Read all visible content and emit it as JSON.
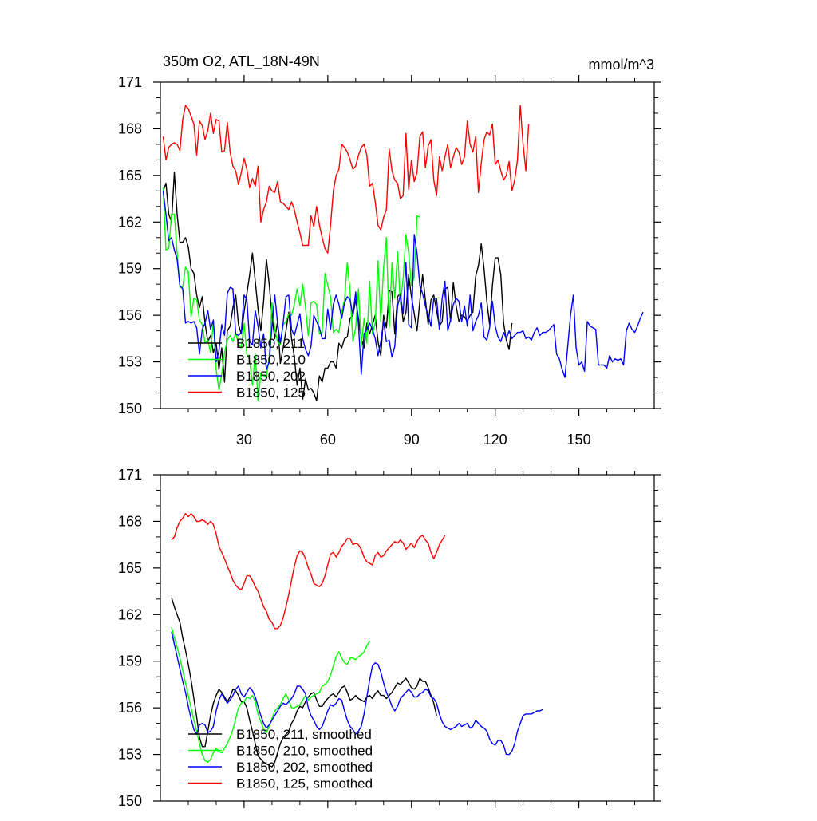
{
  "chart_data": [
    {
      "type": "line",
      "title": "350m O2, ATL_18N-49N",
      "units": "mmol/m^3",
      "xlim": [
        0,
        177
      ],
      "ylim": [
        150,
        171
      ],
      "yticks": [
        150,
        153,
        156,
        159,
        162,
        165,
        168,
        171
      ],
      "xticks": [
        30,
        60,
        90,
        120,
        150
      ],
      "legend_position": "bottom-left",
      "series": [
        {
          "name": "B1850, 211",
          "color": "#000000",
          "x0": 1,
          "values": [
            164.0,
            164.5,
            162.5,
            162.0,
            165.2,
            162.5,
            160.7,
            160.7,
            161.0,
            160.4,
            159.0,
            158.7,
            157.3,
            156.5,
            157.2,
            155.5,
            154.3,
            154.7,
            153.6,
            154.2,
            152.5,
            153.9,
            151.7,
            155.0,
            155.3,
            156.5,
            157.3,
            155.4,
            154.8,
            156.2,
            157.4,
            158.6,
            160.0,
            158.2,
            156.4,
            155.0,
            156.9,
            159.6,
            158.0,
            156.0,
            154.5,
            155.6,
            152.9,
            153.9,
            155.0,
            156.2,
            154.5,
            153.3,
            151.5,
            152.6,
            150.6,
            151.9,
            151.2,
            151.3,
            151.0,
            150.5,
            152.1,
            151.7,
            152.6,
            152.6,
            153.0,
            153.0,
            152.6,
            154.2,
            153.9,
            154.5,
            154.6,
            155.8,
            156.0,
            157.0,
            155.8,
            154.5,
            153.9,
            155.5,
            154.8,
            155.4,
            156.0,
            154.3,
            153.4,
            156.0,
            155.2,
            157.6,
            157.5,
            154.8,
            157.2,
            157.4,
            155.6,
            156.2,
            158.6,
            157.2,
            156.1,
            155.0,
            156.9,
            158.6,
            157.0,
            155.4,
            157.0,
            157.3,
            156.3,
            155.3,
            155.6,
            157.7,
            157.8,
            155.6,
            158.1,
            156.6,
            155.6,
            156.0,
            155.9,
            155.6,
            156.0,
            156.2,
            158.5,
            159.2,
            160.6,
            159.0,
            156.9,
            155.4,
            157.9,
            159.7,
            159.7,
            158.6,
            155.5,
            154.4,
            153.8,
            155.5
          ]
        },
        {
          "name": "B1850, 210",
          "color": "#00ff00",
          "x0": 1,
          "values": [
            164.2,
            160.2,
            160.3,
            162.5,
            162.5,
            160.0,
            157.8,
            157.8,
            159.1,
            158.8,
            155.9,
            157.1,
            157.0,
            155.7,
            155.4,
            154.2,
            154.4,
            153.6,
            155.6,
            152.5,
            151.2,
            152.2,
            153.6,
            154.4,
            154.7,
            154.3,
            154.9,
            154.1,
            153.9,
            155.5,
            153.5,
            153.1,
            151.5,
            153.5,
            150.5,
            152.3,
            152.1,
            152.0,
            153.3,
            156.8,
            155.1,
            154.3,
            154.1,
            155.4,
            155.6,
            156.1,
            156.0,
            156.7,
            157.7,
            156.6,
            158.0,
            156.5,
            154.7,
            156.8,
            156.9,
            156.7,
            154.8,
            154.9,
            158.7,
            157.9,
            157.2,
            154.9,
            155.1,
            154.9,
            156.2,
            157.0,
            159.4,
            157.5,
            154.3,
            155.2,
            157.7,
            154.0,
            155.8,
            154.2,
            158.2,
            154.8,
            155.5,
            159.5,
            155.6,
            159.1,
            161.0,
            155.2,
            159.4,
            157.1,
            160.1,
            156.7,
            158.4,
            161.2,
            160.0,
            157.9,
            158.5,
            162.4,
            162.3
          ]
        },
        {
          "name": "B1850, 202",
          "color": "#0000ff",
          "x0": 1,
          "values": [
            164.0,
            162.5,
            160.8,
            161.0,
            160.2,
            159.6,
            157.9,
            157.7,
            155.5,
            155.6,
            155.5,
            155.6,
            155.2,
            153.5,
            155.1,
            155.5,
            156.3,
            155.1,
            155.7,
            153.0,
            153.7,
            155.4,
            154.7,
            157.4,
            157.8,
            157.7,
            154.8,
            154.7,
            154.9,
            157.3,
            157.0,
            154.3,
            154.1,
            156.3,
            155.3,
            153.9,
            154.8,
            152.5,
            153.0,
            155.3,
            157.3,
            155.5,
            154.2,
            155.5,
            157.2,
            157.3,
            155.1,
            154.7,
            155.4,
            156.1,
            154.5,
            153.8,
            153.4,
            154.0,
            156.0,
            155.6,
            155.2,
            154.5,
            154.5,
            156.4,
            155.1,
            156.7,
            157.3,
            156.7,
            155.8,
            156.8,
            157.2,
            157.0,
            156.0,
            157.5,
            155.4,
            152.2,
            154.8,
            155.1,
            155.5,
            155.1,
            154.5,
            153.4,
            154.3,
            155.6,
            154.3,
            154.4,
            153.3,
            154.0,
            156.6,
            157.3,
            156.1,
            159.4,
            155.4,
            155.2,
            161.2,
            160.0,
            157.9,
            157.4,
            156.6,
            156.0,
            155.3,
            157.1,
            157.1,
            155.1,
            157.1,
            158.2,
            155.0,
            155.7,
            156.7,
            157.1,
            156.9,
            155.6,
            156.6,
            155.3,
            157.3,
            155.0,
            155.6,
            156.0,
            156.8,
            154.6,
            154.4,
            155.2,
            156.9,
            155.3,
            154.6,
            154.3,
            154.9,
            154.5,
            155.0,
            154.5,
            154.7,
            154.9,
            154.9,
            155.0,
            154.5,
            154.6,
            154.4,
            154.9,
            155.2,
            154.7,
            154.9,
            154.9,
            155.0,
            155.2,
            155.4,
            153.5,
            153.2,
            152.5,
            152.0,
            154.0,
            156.0,
            157.3,
            153.9,
            152.8,
            153.0,
            152.4,
            155.6,
            155.3,
            155.2,
            155.1,
            152.8,
            152.8,
            152.8,
            152.6,
            153.4,
            153.0,
            153.2,
            153.1,
            153.2,
            152.8,
            155.0,
            155.5,
            155.1,
            154.9,
            155.3,
            155.8,
            156.2
          ]
        },
        {
          "name": "B1850, 125",
          "color": "#ff0000",
          "x0": 1,
          "values": [
            167.5,
            166.0,
            166.8,
            167.0,
            167.1,
            167.0,
            166.6,
            168.6,
            169.5,
            169.3,
            168.8,
            168.3,
            166.3,
            168.5,
            168.2,
            167.3,
            167.9,
            169.0,
            167.7,
            168.6,
            168.5,
            166.5,
            166.6,
            168.4,
            166.5,
            165.6,
            165.3,
            164.4,
            165.2,
            166.1,
            165.4,
            164.2,
            164.8,
            164.3,
            165.6,
            162.0,
            162.8,
            163.3,
            164.3,
            164.0,
            163.9,
            164.6,
            163.3,
            163.2,
            163.0,
            162.8,
            163.3,
            162.8,
            162.0,
            161.3,
            160.5,
            160.5,
            160.5,
            162.4,
            161.7,
            163.0,
            161.8,
            161.0,
            160.3,
            160.0,
            161.8,
            164.0,
            165.0,
            165.4,
            167.0,
            166.8,
            166.5,
            166.0,
            165.4,
            165.6,
            166.3,
            166.8,
            167.0,
            166.3,
            164.3,
            164.5,
            163.3,
            161.8,
            161.5,
            162.3,
            162.8,
            166.7,
            165.3,
            164.7,
            164.5,
            163.5,
            163.7,
            167.7,
            164.1,
            166.0,
            164.6,
            165.2,
            167.5,
            167.8,
            165.5,
            166.9,
            167.3,
            164.7,
            163.7,
            166.2,
            165.3,
            166.2,
            167.0,
            165.5,
            166.2,
            166.8,
            166.5,
            165.7,
            166.2,
            168.5,
            167.0,
            166.5,
            167.5,
            163.9,
            165.8,
            167.3,
            167.8,
            167.6,
            168.3,
            165.7,
            166.0,
            165.3,
            164.7,
            165.0,
            165.9,
            164.0,
            164.7,
            166.0,
            169.5,
            167.0,
            165.3,
            168.3
          ]
        }
      ]
    },
    {
      "type": "line",
      "xlim": [
        0,
        177
      ],
      "ylim": [
        150,
        171
      ],
      "yticks": [
        150,
        153,
        156,
        159,
        162,
        165,
        168,
        171
      ],
      "legend_position": "bottom-left",
      "series": [
        {
          "name": "B1850, 211, smoothed",
          "color": "#000000",
          "x0": 4,
          "values": [
            163.1,
            162.5,
            162.0,
            161.5,
            160.5,
            159.7,
            158.8,
            157.8,
            156.6,
            155.4,
            154.1,
            153.5,
            153.5,
            154.5,
            155.5,
            156.3,
            156.8,
            157.2,
            157.0,
            156.7,
            156.4,
            156.7,
            157.2,
            157.1,
            156.8,
            156.4,
            156.4,
            156.0,
            155.2,
            154.5,
            153.7,
            152.9,
            152.7,
            152.5,
            152.4,
            152.3,
            152.2,
            152.5,
            153.1,
            153.7,
            154.1,
            154.3,
            154.5,
            155.0,
            155.3,
            155.8,
            156.1,
            156.0,
            156.4,
            156.7,
            156.9,
            157.0,
            156.5,
            156.1,
            156.1,
            156.4,
            156.6,
            156.8,
            156.9,
            156.7,
            157.0,
            157.3,
            157.4,
            157.0,
            156.5,
            156.6,
            156.8,
            156.6,
            156.5,
            156.4,
            156.7,
            156.8,
            156.6,
            156.9,
            157.1,
            156.8,
            156.8,
            156.6,
            156.8,
            157.0,
            157.3,
            157.6,
            157.5,
            157.7,
            157.9,
            157.6,
            157.3,
            157.2,
            157.4,
            157.9,
            157.7,
            157.7,
            157.3,
            156.8,
            156.3,
            155.5
          ]
        },
        {
          "name": "B1850, 210, smoothed",
          "color": "#00ff00",
          "x0": 4,
          "values": [
            161.2,
            160.5,
            159.9,
            159.2,
            158.4,
            157.6,
            156.8,
            156.0,
            155.2,
            154.5,
            153.7,
            153.0,
            152.6,
            152.5,
            152.7,
            153.1,
            153.4,
            153.2,
            153.1,
            153.4,
            153.7,
            154.1,
            154.6,
            155.3,
            156.0,
            156.3,
            156.4,
            156.7,
            156.6,
            156.8,
            156.4,
            155.6,
            155.1,
            154.6,
            154.4,
            154.8,
            155.3,
            155.8,
            156.0,
            156.2,
            156.6,
            156.9,
            156.5,
            156.0,
            156.0,
            156.1,
            156.2,
            156.5,
            156.8,
            156.5,
            156.7,
            156.8,
            156.9,
            157.0,
            157.4,
            157.5,
            157.7,
            158.1,
            158.7,
            159.3,
            159.6,
            159.2,
            158.9,
            158.8,
            159.2,
            159.2,
            159.1,
            159.3,
            159.4,
            159.6,
            160.0,
            160.3
          ]
        },
        {
          "name": "B1850, 202, smoothed",
          "color": "#0000ff",
          "x0": 4,
          "values": [
            160.9,
            160.1,
            159.3,
            158.5,
            157.7,
            157.0,
            156.1,
            155.3,
            154.6,
            154.3,
            154.9,
            155.0,
            154.9,
            154.4,
            154.5,
            154.8,
            155.8,
            156.5,
            156.9,
            156.6,
            156.3,
            156.5,
            156.8,
            157.2,
            157.4,
            156.9,
            156.7,
            157.0,
            157.3,
            157.1,
            156.7,
            156.1,
            155.5,
            155.0,
            154.7,
            154.9,
            155.2,
            155.5,
            155.8,
            156.1,
            156.3,
            156.2,
            156.4,
            156.6,
            156.9,
            157.4,
            157.4,
            157.2,
            156.9,
            156.0,
            155.5,
            155.2,
            154.8,
            154.6,
            154.8,
            155.3,
            155.8,
            156.2,
            156.1,
            156.3,
            156.6,
            156.5,
            155.8,
            155.2,
            154.8,
            154.6,
            154.3,
            154.5,
            154.8,
            155.6,
            156.7,
            157.8,
            158.7,
            158.9,
            158.8,
            158.3,
            157.6,
            157.0,
            156.6,
            156.1,
            155.8,
            156.1,
            156.6,
            156.8,
            157.0,
            157.2,
            157.0,
            156.7,
            156.7,
            156.9,
            157.0,
            157.2,
            157.1,
            156.7,
            156.6,
            156.3,
            155.6,
            155.1,
            154.8,
            154.7,
            154.6,
            154.7,
            154.8,
            155.0,
            154.8,
            154.9,
            155.0,
            154.7,
            154.8,
            155.2,
            155.0,
            154.8,
            154.7,
            154.5,
            154.0,
            153.7,
            153.6,
            153.9,
            153.9,
            153.6,
            153.0,
            153.0,
            153.2,
            153.7,
            154.5,
            155.0,
            155.5,
            155.6,
            155.6,
            155.6,
            155.7,
            155.8,
            155.8,
            155.9
          ]
        },
        {
          "name": "B1850, 125, smoothed",
          "color": "#ff0000",
          "x0": 4,
          "values": [
            166.8,
            167.0,
            167.6,
            168.0,
            168.2,
            168.5,
            168.3,
            168.5,
            168.3,
            168.0,
            168.0,
            168.1,
            168.0,
            167.8,
            168.0,
            167.8,
            167.2,
            166.4,
            166.0,
            165.6,
            165.1,
            164.7,
            164.2,
            163.9,
            163.7,
            163.6,
            164.0,
            164.5,
            164.5,
            164.2,
            163.8,
            163.5,
            163.0,
            162.5,
            162.2,
            161.7,
            161.5,
            161.1,
            161.1,
            161.3,
            161.8,
            162.5,
            163.3,
            164.2,
            165.1,
            165.8,
            166.1,
            166.0,
            165.6,
            165.0,
            164.6,
            164.0,
            163.9,
            163.8,
            164.0,
            164.5,
            165.2,
            165.9,
            166.0,
            165.7,
            166.0,
            166.4,
            166.6,
            166.9,
            166.9,
            166.5,
            166.6,
            166.5,
            166.2,
            165.7,
            165.4,
            165.3,
            165.2,
            165.8,
            166.0,
            165.7,
            165.8,
            166.1,
            166.3,
            166.5,
            166.7,
            166.6,
            166.8,
            166.6,
            166.2,
            166.4,
            166.6,
            166.3,
            166.7,
            167.0,
            167.1,
            166.8,
            166.6,
            166.0,
            165.6,
            166.0,
            166.5,
            166.8,
            167.1
          ]
        }
      ]
    }
  ]
}
